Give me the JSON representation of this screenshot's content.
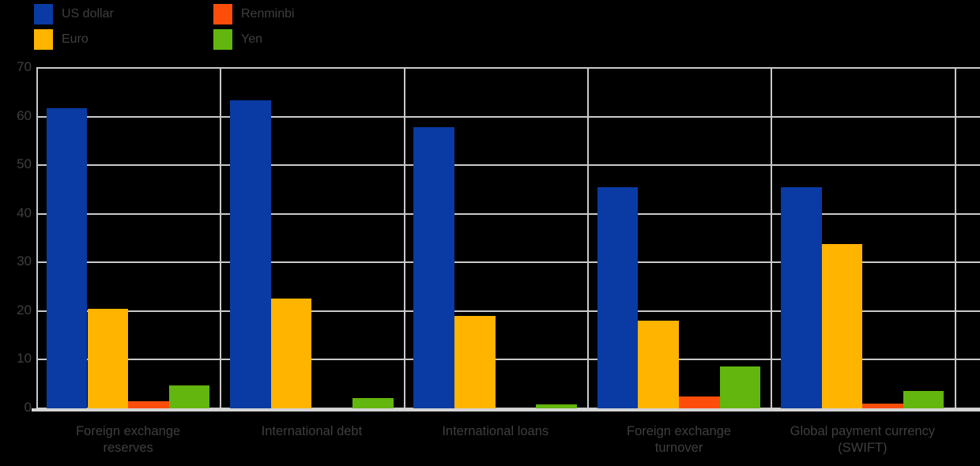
{
  "colors": {
    "background": "#000000",
    "grid": "#c9c9c9",
    "axis_line": "#d4d4d4",
    "text": "#3f3f3f",
    "us_dollar": "#0a3aa3",
    "euro": "#ffb400",
    "renminbi": "#fc4e0a",
    "yen": "#62b60e"
  },
  "legend": {
    "items": [
      {
        "label": "US dollar",
        "color": "#0a3aa3"
      },
      {
        "label": "Euro",
        "color": "#ffb400"
      },
      {
        "label": "Renminbi",
        "color": "#fc4e0a"
      },
      {
        "label": "Yen",
        "color": "#62b60e"
      }
    ]
  },
  "category_label_lines": [
    [
      "Foreign exchange",
      "reserves"
    ],
    [
      "International debt"
    ],
    [
      "International loans"
    ],
    [
      "Foreign exchange",
      "turnover"
    ],
    [
      "Global payment currency",
      "(SWIFT)"
    ]
  ],
  "chart_data": {
    "type": "bar",
    "title": "",
    "categories": [
      "Foreign exchange reserves",
      "International debt",
      "International loans",
      "Foreign exchange turnover",
      "Global payment currency (SWIFT)"
    ],
    "series": [
      {
        "name": "US dollar",
        "color": "#0a3aa3",
        "values": [
          61.8,
          63.4,
          57.8,
          45.5,
          45.5
        ]
      },
      {
        "name": "Euro",
        "color": "#ffb400",
        "values": [
          20.5,
          22.6,
          19.0,
          18.0,
          33.8
        ]
      },
      {
        "name": "Renminbi",
        "color": "#fc4e0a",
        "values": [
          1.4,
          0,
          0,
          2.5,
          0.9
        ]
      },
      {
        "name": "Yen",
        "color": "#62b60e",
        "values": [
          4.7,
          2.1,
          0.8,
          8.6,
          3.5
        ]
      }
    ],
    "xlabel": "",
    "ylabel": "",
    "ylim": [
      0,
      70
    ],
    "yticks": [
      0,
      10,
      20,
      30,
      40,
      50,
      60,
      70
    ],
    "grid": true,
    "legend_position": "top-left"
  }
}
